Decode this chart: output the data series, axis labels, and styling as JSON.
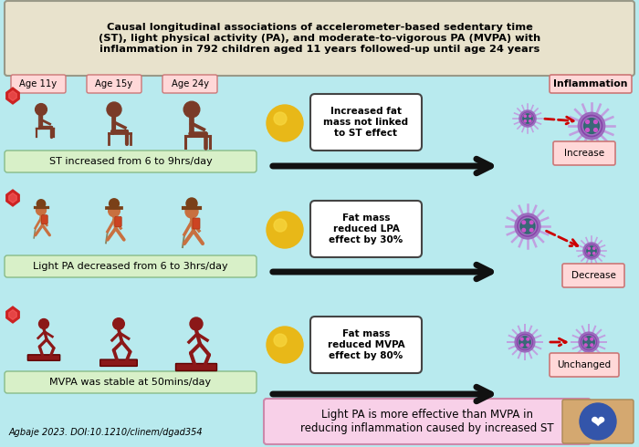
{
  "bg_color": "#b8eaee",
  "title_box_color": "#e8e2cc",
  "title_text": "Causal longitudinal associations of accelerometer-based sedentary time\n(ST), light physical activity (PA), and moderate-to-vigorous PA (MVPA) with\ninflammation in 792 children aged 11 years followed-up until age 24 years",
  "title_fontsize": 8.2,
  "age_labels": [
    "Age 11y",
    "Age 15y",
    "Age 24y"
  ],
  "age_label_color": "#ffd8d8",
  "age_label_fontsize": 7.5,
  "row_labels": [
    "ST increased from 6 to 9hrs/day",
    "Light PA decreased from 6 to 3hrs/day",
    "MVPA was stable at 50mins/day"
  ],
  "row_label_color": "#d8f0c8",
  "fat_mass_texts": [
    "Increased fat\nmass not linked\nto ST effect",
    "Fat mass\nreduced LPA\neffect by 30%",
    "Fat mass\nreduced MVPA\neffect by 80%"
  ],
  "outcome_labels": [
    "Increase",
    "Decrease",
    "Unchanged"
  ],
  "outcome_label_color": "#ffd8d8",
  "inflammation_label": "Inflammation",
  "inflammation_label_color": "#ffd8d8",
  "bottom_text": "Light PA is more effective than MVPA in\nreducing inflammation caused by increased ST",
  "bottom_box_color": "#f8d0e8",
  "citation_text": "Agbaje 2023. DOI:10.1210/clinem/dgad354",
  "citation_fontsize": 7,
  "arrow_color": "#111111",
  "dashed_arrow_color": "#cc0000",
  "sit_color": "#7a3b28",
  "walk_color": "#c87040",
  "run_color": "#8b1818",
  "virus_body_color": "#9966bb",
  "virus_spike_color": "#c0a0e0",
  "virus_center_color": "#226666",
  "gold_color": "#e8b818",
  "gold_hi_color": "#f8d840"
}
